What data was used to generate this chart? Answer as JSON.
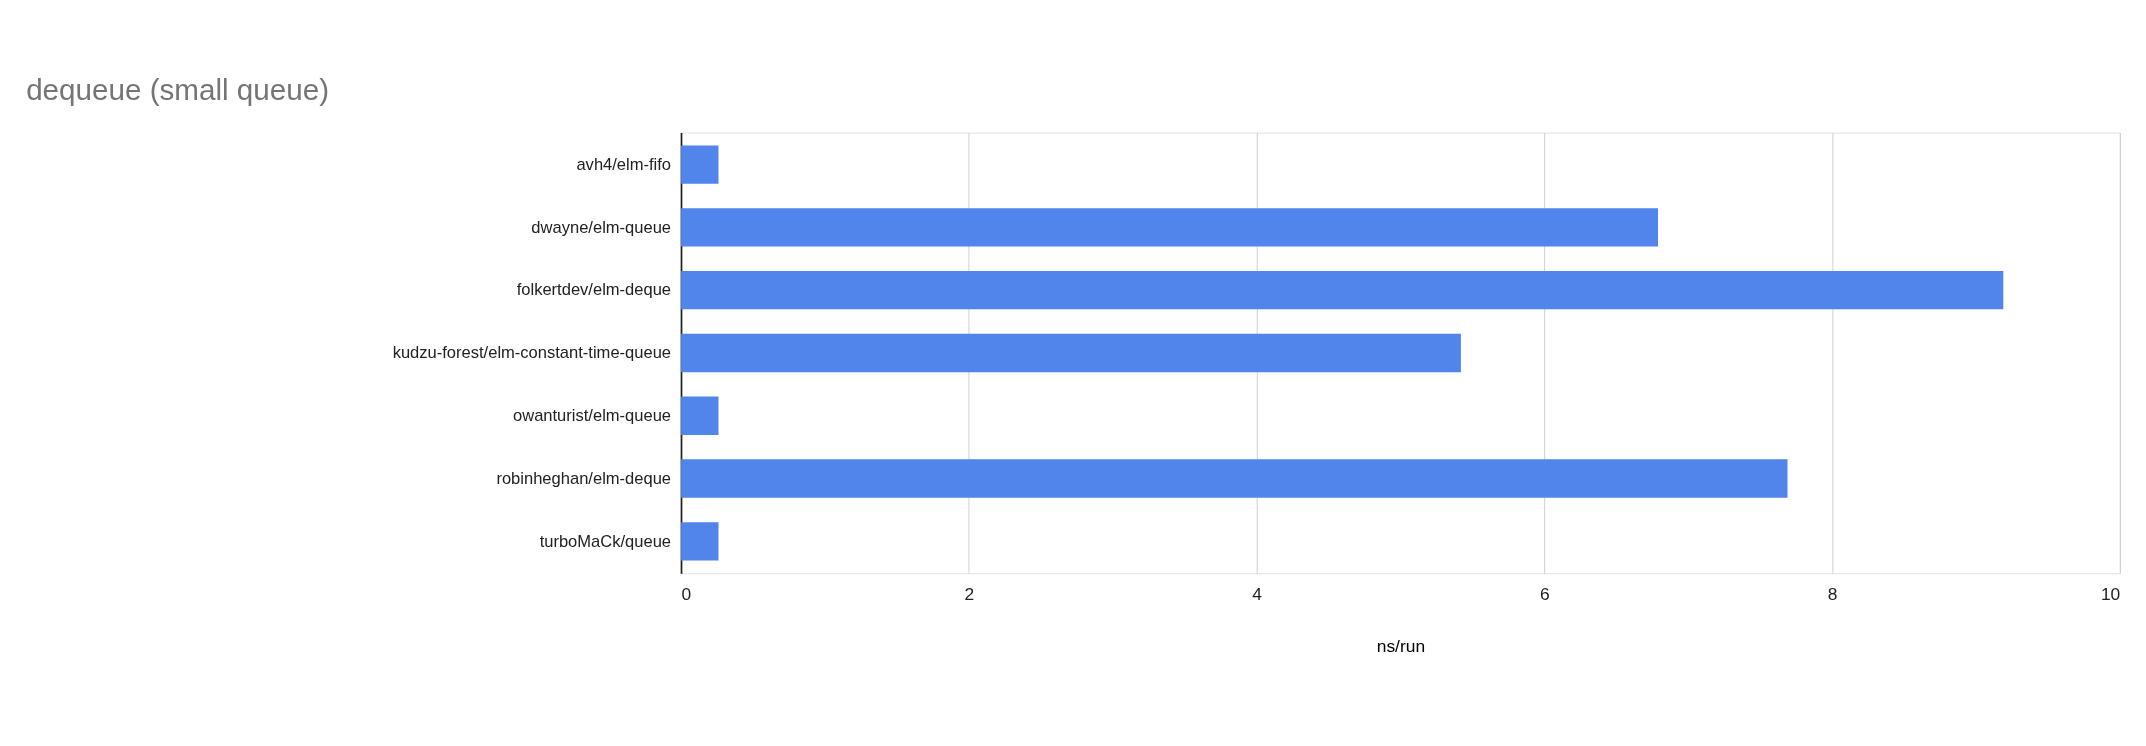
{
  "chart_data": {
    "type": "bar",
    "orientation": "horizontal",
    "title": "dequeue (small queue)",
    "xlabel": "ns/run",
    "categories": [
      "avh4/elm-fifo",
      "dwayne/elm-queue",
      "folkertdev/elm-deque",
      "kudzu-forest/elm-constant-time-queue",
      "owanturist/elm-queue",
      "robinheghan/elm-deque",
      "turboMaCk/queue"
    ],
    "values": [
      0.26,
      6.79,
      9.19,
      5.42,
      0.26,
      7.69,
      0.26
    ],
    "color": "#5185ec",
    "xlim": [
      0,
      10
    ],
    "xticks": [
      0,
      2,
      4,
      6,
      8,
      10
    ],
    "grid": "x"
  }
}
